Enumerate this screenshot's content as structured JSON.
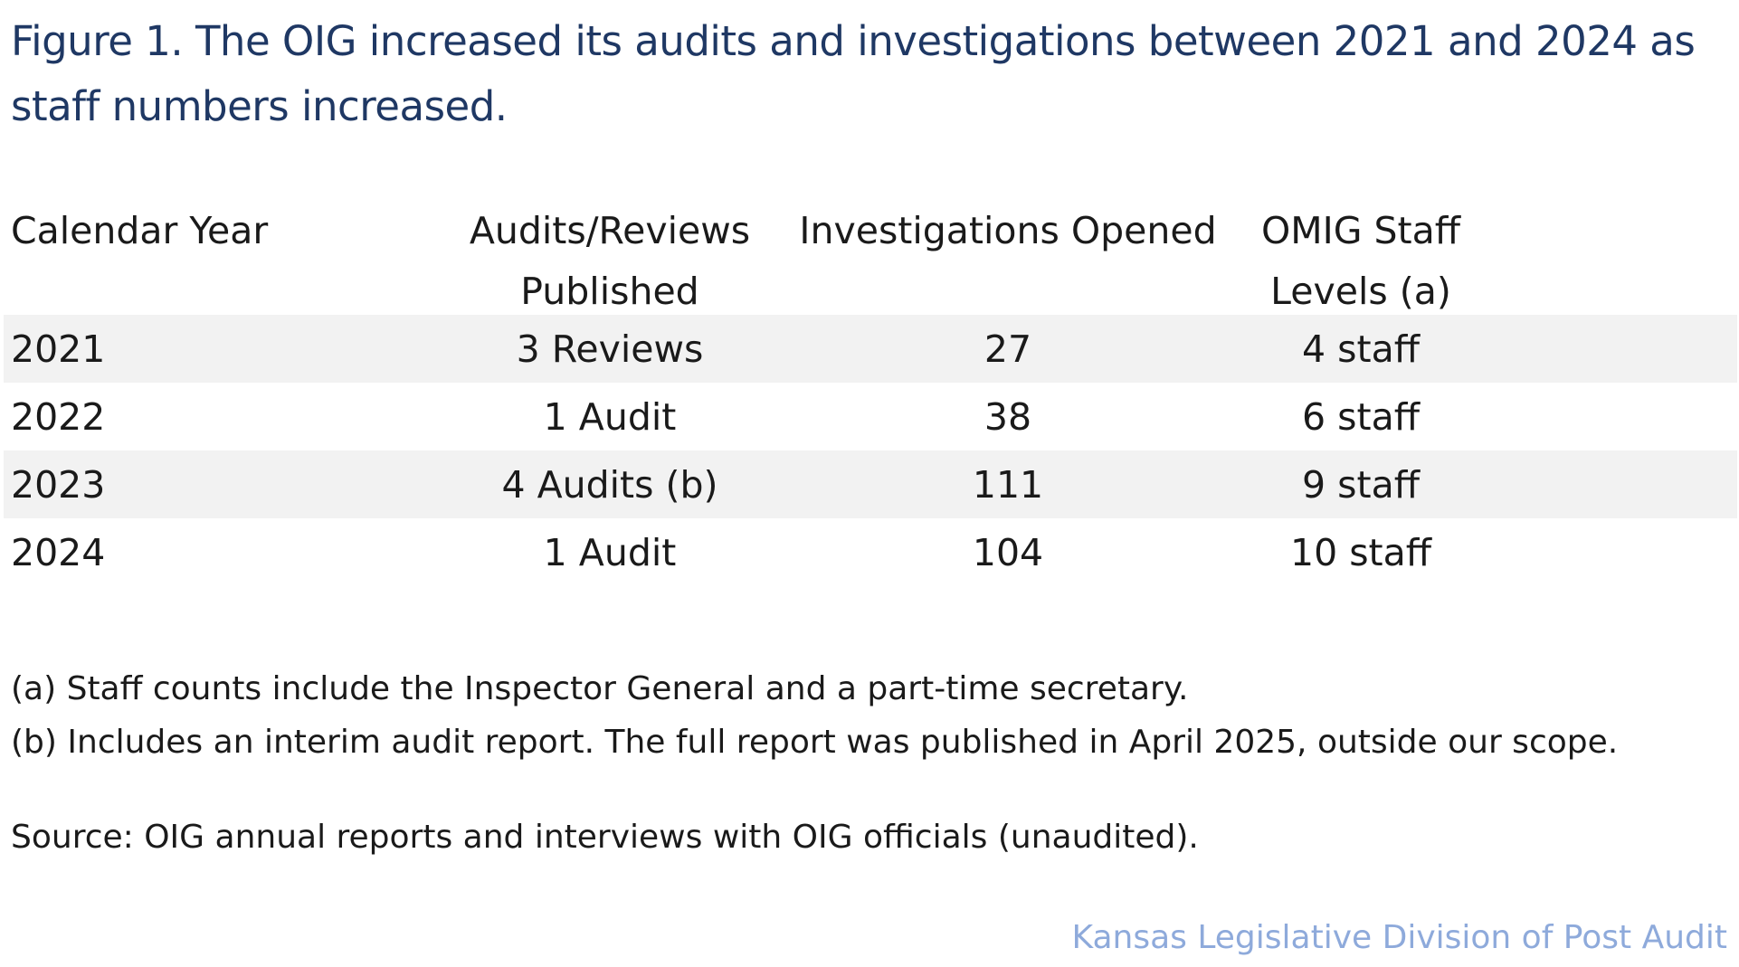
{
  "title": "Figure 1. The OIG increased its audits and investigations between 2021 and 2024 as staff numbers increased.",
  "table": {
    "headers": [
      "Calendar Year",
      "Audits/Reviews Published",
      "Investigations Opened",
      "OMIG Staff Levels (a)"
    ],
    "rows": [
      [
        "2021",
        "3 Reviews",
        "27",
        "4 staff"
      ],
      [
        "2022",
        "1 Audit",
        "38",
        "6 staff"
      ],
      [
        "2023",
        "4 Audits (b)",
        "111",
        "9 staff"
      ],
      [
        "2024",
        "1 Audit",
        "104",
        "10 staff"
      ]
    ],
    "row_shading_color": "#f2f2f2"
  },
  "notes": [
    "(a) Staff counts include the Inspector General and a part-time secretary.",
    "(b) Includes an interim audit report. The full report was published in April 2025, outside our scope."
  ],
  "source": "Source: OIG annual reports and interviews with OIG officials (unaudited).",
  "credit": "Kansas Legislative Division of Post Audit",
  "colors": {
    "title": "#1f3864",
    "credit": "#8eaadb",
    "text": "#1a1a1a"
  }
}
